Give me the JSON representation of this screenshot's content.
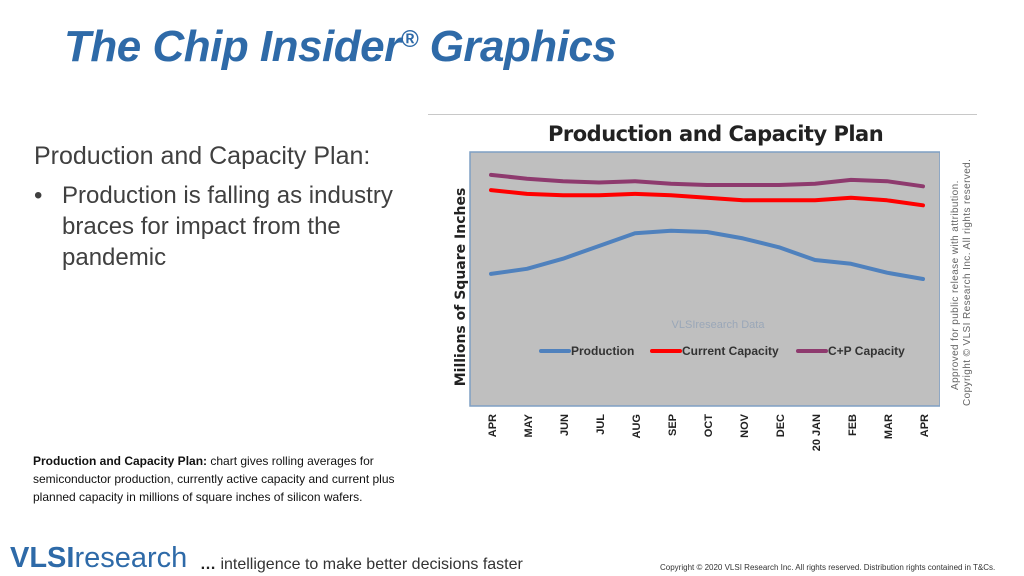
{
  "slide": {
    "title": "The Chip Insider",
    "title_reg": "®",
    "title_suffix": " Graphics",
    "heading": "Production and Capacity Plan:",
    "bullet_marker": "•",
    "bullet": "Production is falling as industry braces for impact from the pandemic",
    "caption_bold": "Production and Capacity Plan:",
    "caption_text": " chart gives rolling averages for semiconductor production, currently active capacity and current plus planned capacity in millions of square inches of silicon wafers.",
    "side_note_1": "Approved for public release with attribution.",
    "side_note_2": "Copyright © VLSI Research Inc.  All rights reserved."
  },
  "footer": {
    "logo_bold": "VLSI",
    "logo_light": "research",
    "ellipsis": "…",
    "tagline": " intelligence to make better decisions faster",
    "copyright": "Copyright © 2020 VLSI Research Inc. All rights reserved. Distribution rights contained in T&Cs."
  },
  "colors": {
    "production": "#4f81bd",
    "current_capacity": "#ff0000",
    "cp_capacity": "#8e3a6e",
    "plot_bg": "#bfbfbf",
    "plot_border": "#7f9fc4"
  },
  "chart_data": {
    "type": "line",
    "title": "Production and Capacity Plan",
    "ylabel": "Millions of Square Inches",
    "xlabel": "",
    "watermark": "VLSIresearch Data",
    "categories": [
      "APR",
      "MAY",
      "JUN",
      "JUL",
      "AUG",
      "SEP",
      "OCT",
      "NOV",
      "DEC",
      "20 JAN",
      "FEB",
      "MAR",
      "APR"
    ],
    "ylim": [
      0,
      100
    ],
    "grid": false,
    "legend": "bottom-inside",
    "series": [
      {
        "name": "Production",
        "values": [
          52,
          54,
          58,
          63,
          68,
          69,
          68.5,
          66,
          62.5,
          57.5,
          56,
          52.5,
          50
        ]
      },
      {
        "name": "Current Capacity",
        "values": [
          85,
          83.5,
          83,
          83,
          83.5,
          83,
          82,
          81,
          81,
          81,
          82,
          81,
          79
        ]
      },
      {
        "name": "C+P Capacity",
        "values": [
          91,
          89.5,
          88.5,
          88,
          88.5,
          87.5,
          87,
          87,
          87,
          87.5,
          89,
          88.5,
          86.5
        ]
      }
    ]
  }
}
